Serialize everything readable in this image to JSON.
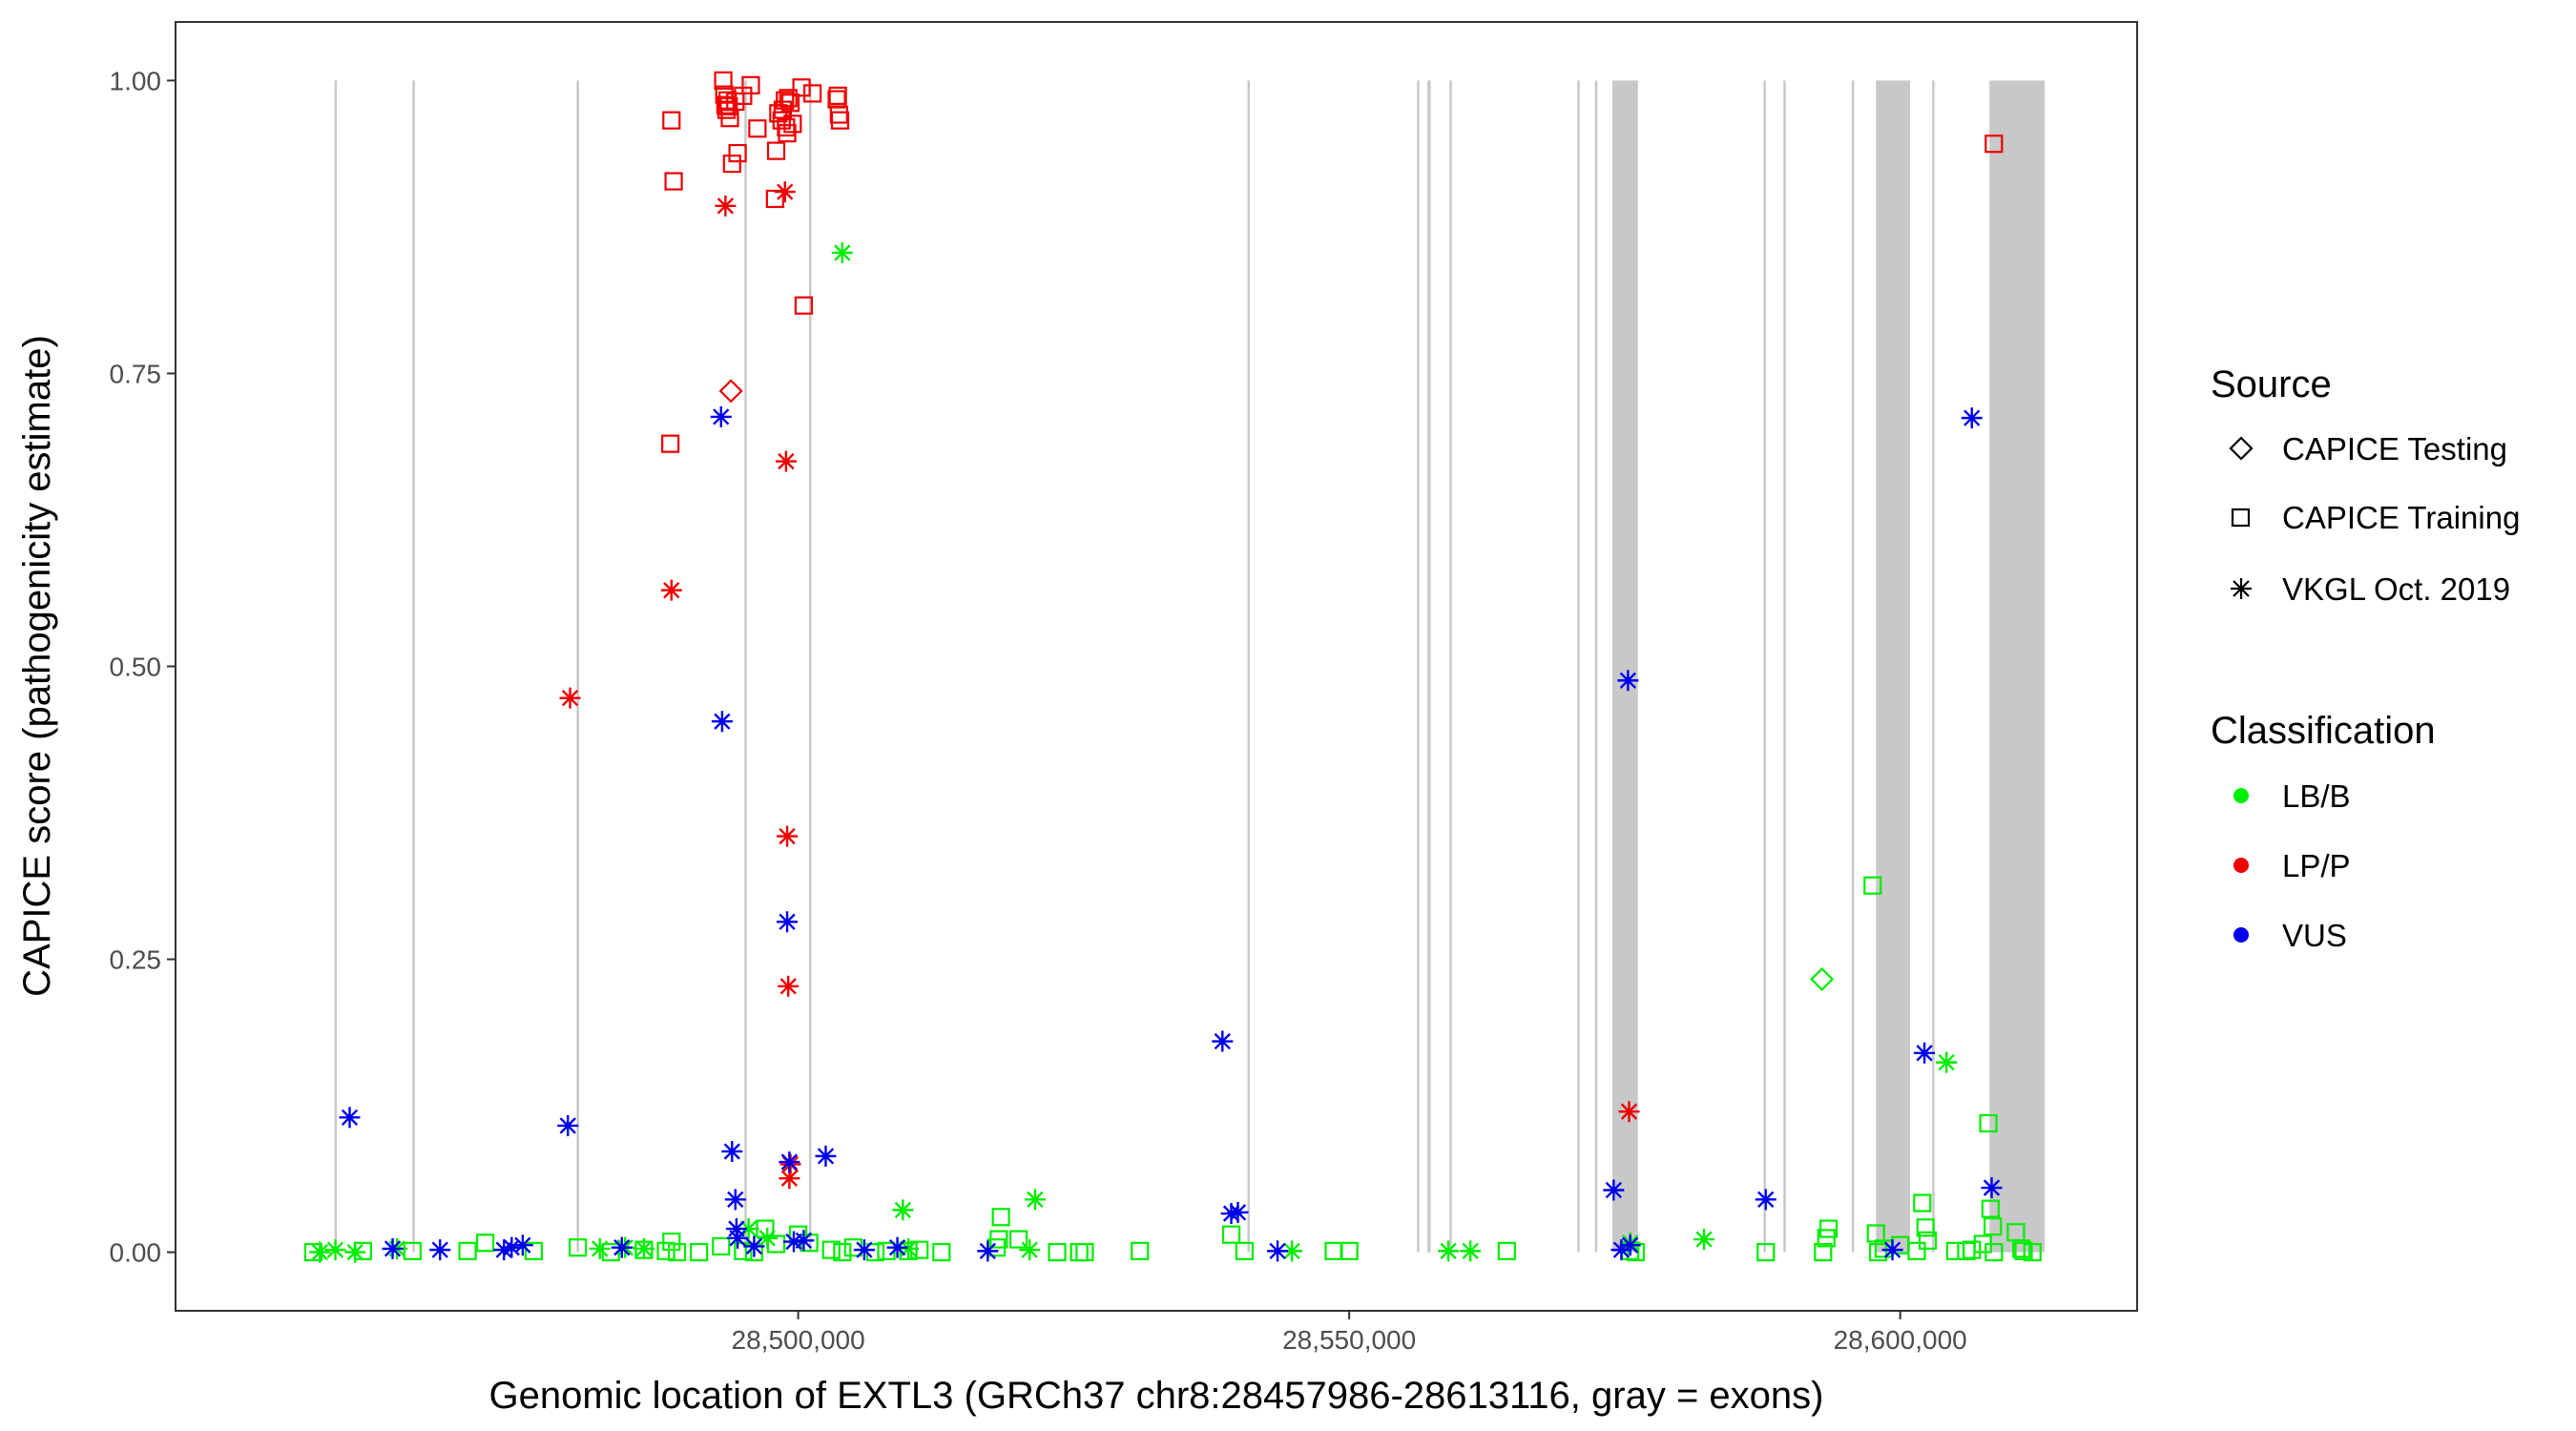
{
  "chart_data": {
    "type": "scatter",
    "title": "",
    "xlabel": "Genomic location of EXTL3 (GRCh37 chr8:28457986-28613116, gray = exons)",
    "ylabel": "CAPICE score (pathogenicity estimate)",
    "xlim": [
      28443500,
      28621500
    ],
    "ylim": [
      -0.05,
      1.05
    ],
    "x_ticks": [
      28500000,
      28550000,
      28600000
    ],
    "x_tick_labels": [
      "28,500,000",
      "28,550,000",
      "28,600,000"
    ],
    "y_ticks": [
      0.0,
      0.25,
      0.5,
      0.75,
      1.0
    ],
    "y_tick_labels": [
      "0.00",
      "0.25",
      "0.50",
      "0.75",
      "1.00"
    ],
    "grid": false,
    "exons": [
      [
        28457930,
        28458060
      ],
      [
        28465000,
        28465130
      ],
      [
        28479900,
        28480030
      ],
      [
        28495120,
        28495250
      ],
      [
        28500990,
        28501120
      ],
      [
        28540770,
        28540900
      ],
      [
        28556150,
        28556280
      ],
      [
        28557100,
        28557400
      ],
      [
        28559100,
        28559230
      ],
      [
        28570700,
        28570830
      ],
      [
        28572300,
        28572430
      ],
      [
        28573880,
        28576200
      ],
      [
        28587600,
        28587730
      ],
      [
        28589400,
        28589530
      ],
      [
        28595600,
        28595730
      ],
      [
        28597800,
        28600900
      ],
      [
        28602900,
        28603030
      ],
      [
        28608100,
        28613116
      ]
    ],
    "legend": {
      "position": "right",
      "source_title": "Source",
      "classification_title": "Classification",
      "sources": [
        {
          "name": "CAPICE Testing",
          "shape": "diamond"
        },
        {
          "name": "CAPICE Training",
          "shape": "square"
        },
        {
          "name": "VKGL Oct. 2019",
          "shape": "asterisk"
        }
      ],
      "classes": [
        {
          "name": "LB/B",
          "color": "#00ee00"
        },
        {
          "name": "LP/P",
          "color": "#ee0000"
        },
        {
          "name": "VUS",
          "color": "#0000ee"
        }
      ]
    },
    "series": [
      {
        "name": "VKGL Oct. 2019 LB/B",
        "shape": "asterisk",
        "color": "#00ee00",
        "x": [
          28456600,
          28458000,
          28459800,
          28463600,
          28482000,
          28484300,
          28486000,
          28495500,
          28497200,
          28504000,
          28509500,
          28510000,
          28521000,
          28521500,
          28544800,
          28559000,
          28561000,
          28575500,
          28582200,
          28604200
        ],
        "y": [
          0.0,
          0.002,
          0.0,
          0.003,
          0.003,
          0.004,
          0.003,
          0.02,
          0.012,
          0.853,
          0.036,
          0.003,
          0.002,
          0.045,
          0.001,
          0.001,
          0.001,
          0.008,
          0.011,
          0.162
        ]
      },
      {
        "name": "VKGL Oct. 2019 LP/P",
        "shape": "asterisk",
        "color": "#ee0000",
        "x": [
          28479300,
          28488500,
          28493400,
          28498800,
          28498900,
          28499000,
          28499100,
          28499200,
          28499300,
          28575400
        ],
        "y": [
          0.473,
          0.565,
          0.893,
          0.905,
          0.675,
          0.355,
          0.227,
          0.063,
          0.075,
          0.12
        ]
      },
      {
        "name": "VKGL Oct. 2019 VUS",
        "shape": "asterisk",
        "color": "#0000ee",
        "x": [
          28459300,
          28463200,
          28467500,
          28473300,
          28474000,
          28475000,
          28479100,
          28484000,
          28493000,
          28493100,
          28494000,
          28494300,
          28494400,
          28494500,
          28496000,
          28499000,
          28499200,
          28499600,
          28500500,
          28502500,
          28506000,
          28509000,
          28517200,
          28538500,
          28539300,
          28539900,
          28543500,
          28574000,
          28574700,
          28575300,
          28575500,
          28587800,
          28599300,
          28602200,
          28606500,
          28608300
        ],
        "y": [
          0.115,
          0.003,
          0.002,
          0.002,
          0.004,
          0.006,
          0.108,
          0.004,
          0.713,
          0.453,
          0.086,
          0.045,
          0.02,
          0.012,
          0.005,
          0.282,
          0.077,
          0.009,
          0.01,
          0.082,
          0.002,
          0.004,
          0.001,
          0.18,
          0.033,
          0.034,
          0.001,
          0.053,
          0.002,
          0.488,
          0.006,
          0.045,
          0.002,
          0.17,
          0.712,
          0.055
        ]
      },
      {
        "name": "CAPICE Testing LP/P",
        "shape": "diamond",
        "color": "#ee0000",
        "x": [
          28493900
        ],
        "y": [
          0.735
        ]
      },
      {
        "name": "CAPICE Testing LB/B",
        "shape": "diamond",
        "color": "#00ee00",
        "x": [
          28592900
        ],
        "y": [
          0.233
        ]
      },
      {
        "name": "CAPICE Training LP/P",
        "shape": "square",
        "color": "#ee0000",
        "x": [
          28488500,
          28488700,
          28488400,
          28493200,
          28493300,
          28493400,
          28493500,
          28493600,
          28493700,
          28493800,
          28494000,
          28494300,
          28494500,
          28495000,
          28495700,
          28496300,
          28497900,
          28498000,
          28498200,
          28498500,
          28498600,
          28498800,
          28498900,
          28499000,
          28499100,
          28499300,
          28499500,
          28500300,
          28500500,
          28501300,
          28503500,
          28503600,
          28503700,
          28503800,
          28608500
        ],
        "y": [
          0.966,
          0.914,
          0.69,
          1.0,
          0.988,
          0.979,
          0.975,
          0.983,
          0.978,
          0.968,
          0.929,
          0.982,
          0.938,
          0.987,
          0.996,
          0.959,
          0.899,
          0.94,
          0.972,
          0.966,
          0.975,
          0.983,
          0.96,
          0.955,
          0.985,
          0.981,
          0.963,
          0.994,
          0.808,
          0.989,
          0.984,
          0.987,
          0.971,
          0.966,
          0.946
        ]
      },
      {
        "name": "CAPICE Training LB/B",
        "shape": "square",
        "color": "#00ee00",
        "x": [
          28456000,
          28460500,
          28465000,
          28470000,
          28471600,
          28476000,
          28480000,
          28483000,
          28486000,
          28488000,
          28488500,
          28489000,
          28491000,
          28493000,
          28495000,
          28496000,
          28497000,
          28498000,
          28500000,
          28501000,
          28503000,
          28504000,
          28505000,
          28507000,
          28508000,
          28510000,
          28511000,
          28513000,
          28518000,
          28518200,
          28518400,
          28520000,
          28523500,
          28525500,
          28526000,
          28531000,
          28539300,
          28540500,
          28548600,
          28550000,
          28564300,
          28575500,
          28576000,
          28587800,
          28593000,
          28593300,
          28593500,
          28597500,
          28597800,
          28598000,
          28598500,
          28600000,
          28601500,
          28602000,
          28602300,
          28602500,
          28605000,
          28606000,
          28606500,
          28607500,
          28608000,
          28608200,
          28608400,
          28608500,
          28610500,
          28611000,
          28611200,
          28612000
        ],
        "y": [
          0.0,
          0.001,
          0.001,
          0.001,
          0.008,
          0.001,
          0.004,
          0.0,
          0.002,
          0.001,
          0.009,
          0.0,
          0.0,
          0.005,
          0.001,
          0.0,
          0.02,
          0.007,
          0.015,
          0.008,
          0.002,
          0.0,
          0.004,
          0.0,
          0.001,
          0.001,
          0.002,
          0.0,
          0.004,
          0.011,
          0.03,
          0.011,
          0.0,
          0.0,
          0.0,
          0.001,
          0.015,
          0.001,
          0.001,
          0.001,
          0.001,
          0.001,
          0.0,
          0.0,
          0.0,
          0.012,
          0.02,
          0.313,
          0.016,
          0.0,
          0.003,
          0.006,
          0.001,
          0.042,
          0.021,
          0.01,
          0.001,
          0.001,
          0.002,
          0.007,
          0.11,
          0.037,
          0.022,
          0.0,
          0.017,
          0.003,
          0.001,
          0.0
        ]
      }
    ]
  }
}
